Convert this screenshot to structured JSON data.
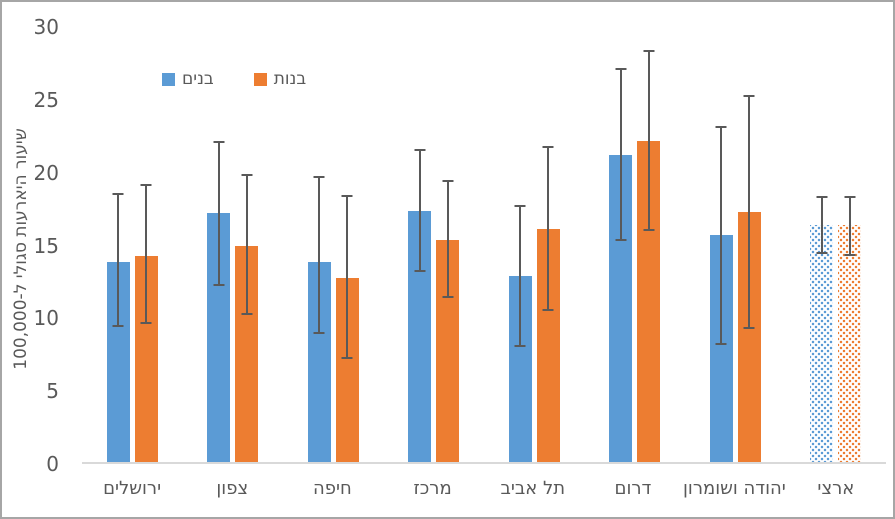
{
  "chart": {
    "y_axis_title": "שיעור היארעות סגולי ל-100,000",
    "colors": {
      "boys_blue": "#5B9BD5",
      "girls_orange": "#ED7D31",
      "error_bar": "#595959",
      "axis_line": "#D9D9D9",
      "text": "#595959",
      "border": "#A6A6A6"
    }
  },
  "chart_data": {
    "type": "bar",
    "title": "",
    "xlabel": "",
    "ylabel": "שיעור היארעות סגולי ל-100,000",
    "ylim": [
      0,
      30
    ],
    "yticks": [
      0,
      5,
      10,
      15,
      20,
      25,
      30
    ],
    "grid": false,
    "legend_position": "inside-top-left",
    "error_bars": true,
    "error_bar_color": "#595959",
    "pattern_fill_category": "ארצי",
    "categories": [
      "ירושלים",
      "צפון",
      "חיפה",
      "מרכז",
      "תל אביב",
      "דרום",
      "יהודה ושומרון",
      "ארצי"
    ],
    "series": [
      {
        "name": "בנים",
        "color": "#5B9BD5",
        "values": [
          13.9,
          17.2,
          13.9,
          17.4,
          12.9,
          21.2,
          15.7,
          16.4
        ],
        "error_low": [
          9.4,
          12.2,
          8.9,
          13.2,
          8.0,
          15.3,
          8.2,
          14.4
        ],
        "error_high": [
          18.6,
          22.2,
          19.8,
          21.6,
          17.8,
          27.2,
          23.2,
          18.4
        ]
      },
      {
        "name": "בנות",
        "color": "#ED7D31",
        "values": [
          14.3,
          15.0,
          12.8,
          15.4,
          16.1,
          22.2,
          17.3,
          16.4
        ],
        "error_low": [
          9.6,
          10.2,
          7.2,
          11.4,
          10.5,
          16.0,
          9.3,
          14.3
        ],
        "error_high": [
          19.2,
          19.9,
          18.5,
          19.5,
          21.8,
          28.4,
          25.3,
          18.4
        ]
      }
    ]
  }
}
